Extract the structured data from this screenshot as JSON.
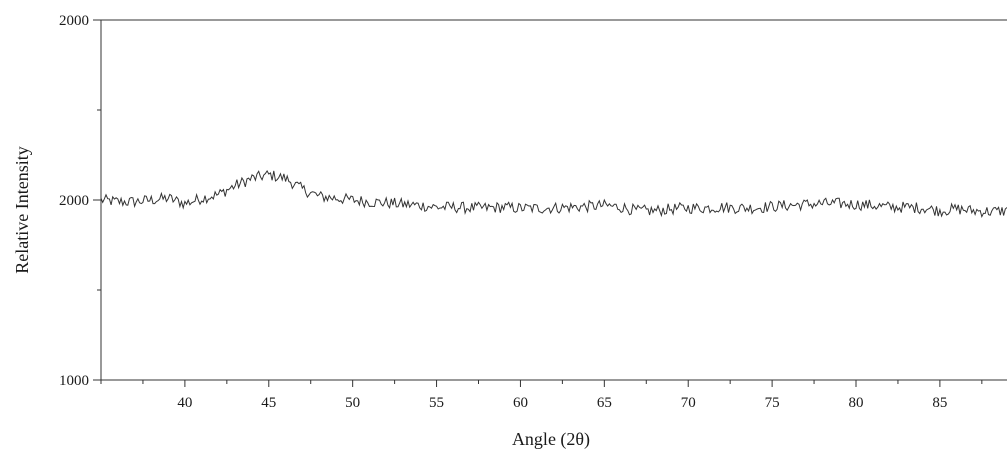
{
  "chart_data": {
    "type": "line",
    "title": "",
    "xlabel": "Angle (2θ)",
    "ylabel": "Relative Intensity",
    "xlim": [
      35,
      89
    ],
    "ylim": [
      1000,
      2000
    ],
    "x_ticks": [
      40,
      45,
      50,
      55,
      60,
      65,
      70,
      75,
      80,
      85
    ],
    "y_tick_labels": [
      "2000",
      "2000",
      "1000"
    ],
    "grid": false,
    "legend": "none",
    "line_color": "#333333",
    "series": [
      {
        "x": [
          35,
          36,
          37,
          38,
          39,
          40,
          41,
          42,
          43,
          44,
          45,
          46,
          47,
          48,
          49,
          50,
          51,
          52,
          53,
          54,
          55,
          56,
          57,
          58,
          59,
          60,
          61,
          62,
          63,
          64,
          65,
          66,
          67,
          68,
          69,
          70,
          71,
          72,
          73,
          74,
          75,
          76,
          77,
          78,
          79,
          80,
          81,
          82,
          83,
          84,
          85,
          86,
          87,
          88,
          89
        ],
        "y": [
          1500,
          1495,
          1495,
          1500,
          1505,
          1490,
          1505,
          1515,
          1540,
          1560,
          1570,
          1560,
          1530,
          1510,
          1505,
          1500,
          1495,
          1492,
          1488,
          1485,
          1480,
          1480,
          1478,
          1478,
          1480,
          1477,
          1477,
          1478,
          1480,
          1482,
          1485,
          1480,
          1470,
          1470,
          1475,
          1478,
          1478,
          1480,
          1478,
          1478,
          1482,
          1485,
          1488,
          1490,
          1490,
          1488,
          1485,
          1480,
          1480,
          1478,
          1470,
          1475,
          1470,
          1468,
          1470
        ]
      }
    ]
  }
}
